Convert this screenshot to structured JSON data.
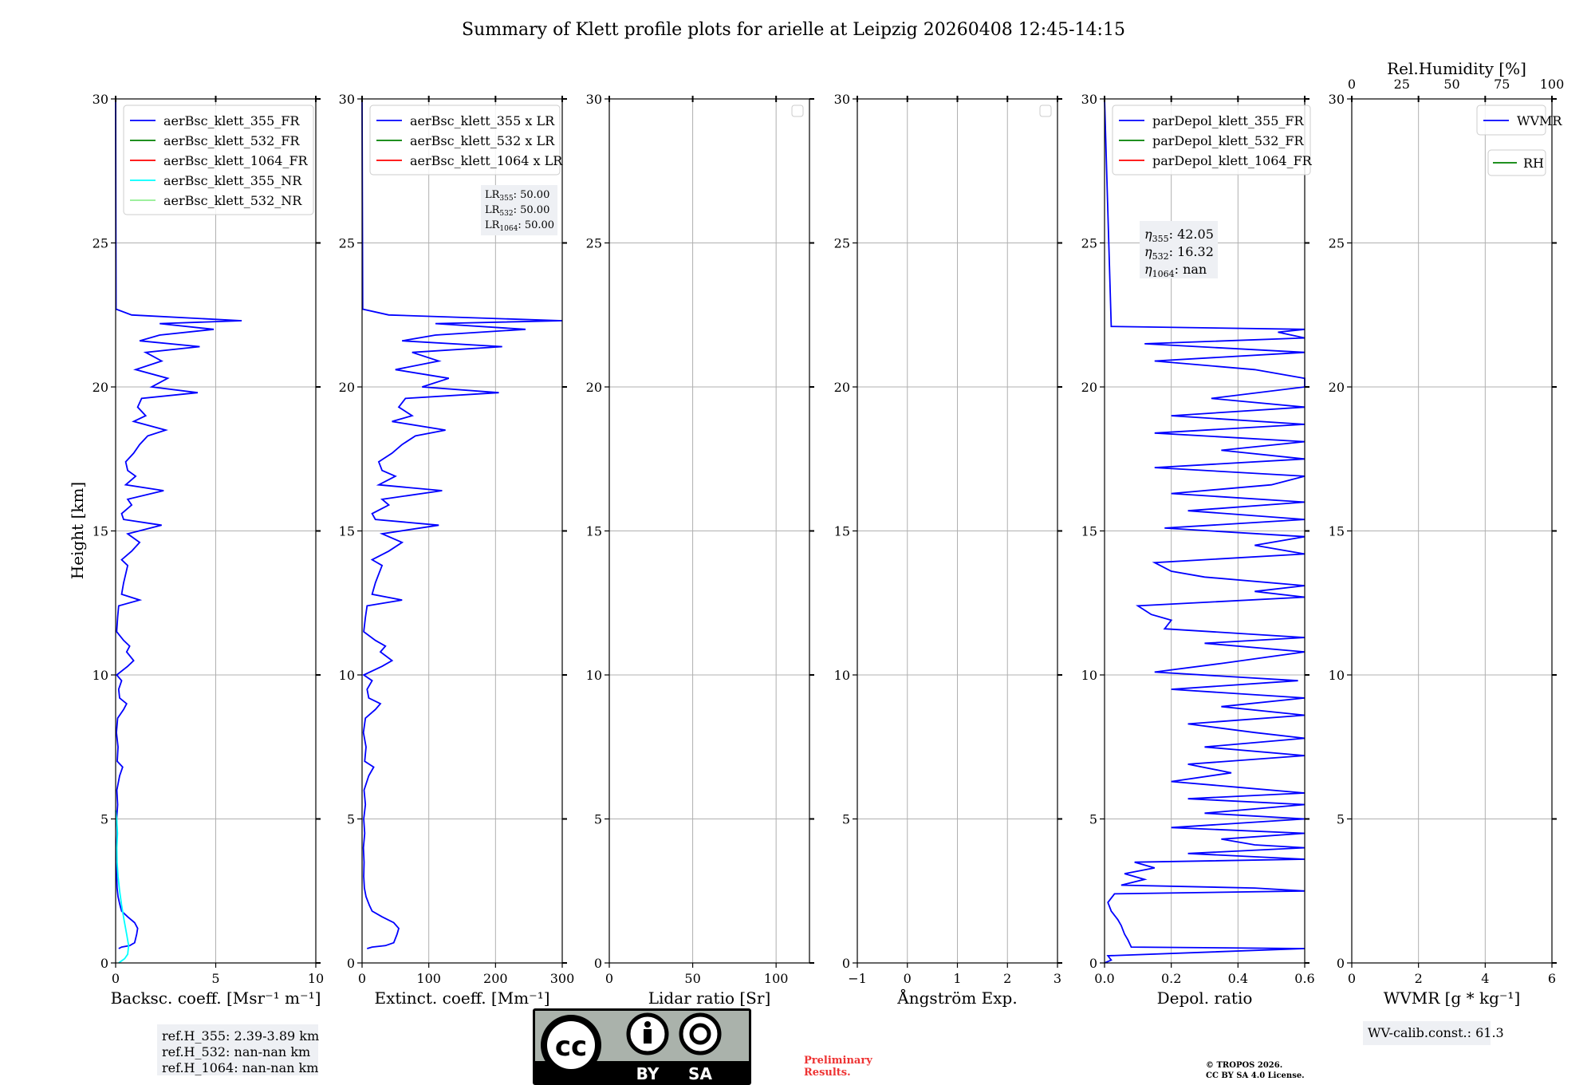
{
  "title": "Summary of Klett profile plots for arielle at Leipzig 20260408 12:45-14:15",
  "ylabel": "Height [km]",
  "ylim": [
    0,
    30
  ],
  "yticks": [
    0,
    5,
    10,
    15,
    20,
    25,
    30
  ],
  "colors": {
    "blue": "#0000ff",
    "green": "#008000",
    "red": "#ff0000",
    "cyan": "#00ffff",
    "lightgreen": "#90ee90",
    "grid": "#b0b0b0"
  },
  "chart_data": [
    {
      "type": "line",
      "id": "bsc",
      "xlabel": "Backsc. coeff. [Msr⁻¹ m⁻¹]",
      "xlim": [
        0,
        10
      ],
      "xticks": [
        0,
        5,
        10
      ],
      "legend": [
        {
          "name": "aerBsc_klett_355_FR",
          "color": "#0000ff"
        },
        {
          "name": "aerBsc_klett_532_FR",
          "color": "#008000"
        },
        {
          "name": "aerBsc_klett_1064_FR",
          "color": "#ff0000"
        },
        {
          "name": "aerBsc_klett_355_NR",
          "color": "#00ffff"
        },
        {
          "name": "aerBsc_klett_532_NR",
          "color": "#90ee90"
        }
      ],
      "series": [
        {
          "name": "aerBsc_klett_355_FR",
          "color": "#0000ff",
          "profile": "bsc",
          "scale": 1
        },
        {
          "name": "aerBsc_klett_355_NR",
          "color": "#00ffff",
          "profile": "nr",
          "scale": 1
        }
      ],
      "annotation": [
        "ref.H_355: 2.39-3.89 km",
        "ref.H_532: nan-nan km",
        "ref.H_1064: nan-nan km"
      ]
    },
    {
      "type": "line",
      "id": "ext",
      "xlabel": "Extinct. coeff. [Mm⁻¹]",
      "xlim": [
        0,
        300
      ],
      "xticks": [
        0,
        100,
        200,
        300
      ],
      "legend": [
        {
          "name": "aerBsc_klett_355 x LR",
          "color": "#0000ff"
        },
        {
          "name": "aerBsc_klett_532 x LR",
          "color": "#008000"
        },
        {
          "name": "aerBsc_klett_1064 x LR",
          "color": "#ff0000"
        }
      ],
      "series": [
        {
          "name": "aerBsc_klett_355 x LR",
          "color": "#0000ff",
          "profile": "bsc",
          "scale": 50
        }
      ],
      "lr_box": [
        {
          "sym": "LR",
          "sub": "355",
          "val": ": 50.00"
        },
        {
          "sym": "LR",
          "sub": "532",
          "val": ": 50.00"
        },
        {
          "sym": "LR",
          "sub": "1064",
          "val": ": 50.00"
        }
      ]
    },
    {
      "type": "line",
      "id": "lr",
      "xlabel": "Lidar ratio [Sr]",
      "xlim": [
        0,
        120
      ],
      "xticks": [
        0,
        50,
        100
      ],
      "legend": [],
      "empty_legend": true,
      "series": []
    },
    {
      "type": "line",
      "id": "ang",
      "xlabel": "Ångström Exp.",
      "xlim": [
        -1,
        3
      ],
      "xticks": [
        -1,
        0,
        1,
        2,
        3
      ],
      "legend": [],
      "empty_legend": true,
      "series": []
    },
    {
      "type": "line",
      "id": "dep",
      "xlabel": "Depol. ratio",
      "xlim": [
        0,
        0.6
      ],
      "xticks": [
        0.0,
        0.2,
        0.4,
        0.6
      ],
      "ticklabels": [
        "0.0",
        "0.2",
        "0.4",
        "0.6"
      ],
      "legend": [
        {
          "name": "parDepol_klett_355_FR",
          "color": "#0000ff"
        },
        {
          "name": "parDepol_klett_532_FR",
          "color": "#008000"
        },
        {
          "name": "parDepol_klett_1064_FR",
          "color": "#ff0000"
        }
      ],
      "series": [
        {
          "name": "parDepol_klett_355_FR",
          "color": "#0000ff",
          "profile": "dep",
          "scale": 1
        }
      ],
      "eta_box": [
        {
          "sym": "η",
          "sub": "355",
          "val": ": 42.05"
        },
        {
          "sym": "η",
          "sub": "532",
          "val": ": 16.32"
        },
        {
          "sym": "η",
          "sub": "1064",
          "val": ": nan"
        }
      ]
    },
    {
      "type": "line",
      "id": "wv",
      "xlabel": "WVMR [g * kg⁻¹]",
      "xlim": [
        0,
        6
      ],
      "xticks": [
        0,
        2,
        4,
        6
      ],
      "top_xlabel": "Rel.Humidity [%]",
      "top_xlim": [
        0,
        100
      ],
      "top_xticks": [
        0,
        25,
        50,
        75,
        100
      ],
      "legend": [
        {
          "name": "WVMR",
          "color": "#0000ff"
        }
      ],
      "legend2": [
        {
          "name": "RH",
          "color": "#008000"
        }
      ],
      "series": [],
      "annotation": [
        "WV-calib.const.: 61.3"
      ]
    }
  ],
  "profiles": {
    "bsc": [
      [
        0.5,
        0.15
      ],
      [
        0.55,
        0.3
      ],
      [
        0.6,
        0.7
      ],
      [
        0.7,
        0.95
      ],
      [
        1.0,
        1.05
      ],
      [
        1.2,
        1.1
      ],
      [
        1.4,
        0.95
      ],
      [
        1.6,
        0.6
      ],
      [
        1.8,
        0.3
      ],
      [
        2.0,
        0.22
      ],
      [
        2.3,
        0.12
      ],
      [
        2.6,
        0.07
      ],
      [
        3.0,
        0.05
      ],
      [
        3.5,
        0.06
      ],
      [
        4.0,
        0.04
      ],
      [
        4.5,
        0.08
      ],
      [
        5.0,
        0.05
      ],
      [
        5.5,
        0.1
      ],
      [
        6.0,
        0.06
      ],
      [
        6.5,
        0.2
      ],
      [
        6.8,
        0.35
      ],
      [
        7.0,
        0.08
      ],
      [
        7.5,
        0.12
      ],
      [
        8.0,
        0.04
      ],
      [
        8.5,
        0.1
      ],
      [
        8.8,
        0.4
      ],
      [
        9.0,
        0.55
      ],
      [
        9.2,
        0.2
      ],
      [
        9.5,
        0.15
      ],
      [
        9.8,
        0.3
      ],
      [
        10.0,
        0.05
      ],
      [
        10.3,
        0.6
      ],
      [
        10.5,
        0.9
      ],
      [
        10.8,
        0.55
      ],
      [
        11.0,
        0.7
      ],
      [
        11.2,
        0.4
      ],
      [
        11.5,
        0.05
      ],
      [
        12.0,
        0.1
      ],
      [
        12.4,
        0.15
      ],
      [
        12.6,
        1.2
      ],
      [
        12.8,
        0.3
      ],
      [
        13.2,
        0.4
      ],
      [
        13.5,
        0.5
      ],
      [
        13.8,
        0.6
      ],
      [
        14.0,
        0.3
      ],
      [
        14.3,
        0.8
      ],
      [
        14.6,
        1.2
      ],
      [
        14.9,
        0.6
      ],
      [
        15.2,
        2.3
      ],
      [
        15.4,
        0.4
      ],
      [
        15.6,
        0.3
      ],
      [
        15.9,
        0.8
      ],
      [
        16.1,
        0.6
      ],
      [
        16.4,
        2.4
      ],
      [
        16.6,
        0.5
      ],
      [
        16.9,
        1.0
      ],
      [
        17.1,
        0.6
      ],
      [
        17.4,
        0.5
      ],
      [
        17.7,
        0.9
      ],
      [
        18.0,
        1.2
      ],
      [
        18.3,
        1.6
      ],
      [
        18.5,
        2.5
      ],
      [
        18.8,
        0.9
      ],
      [
        19.0,
        1.5
      ],
      [
        19.3,
        1.1
      ],
      [
        19.6,
        1.3
      ],
      [
        19.8,
        4.1
      ],
      [
        20.0,
        1.8
      ],
      [
        20.3,
        2.6
      ],
      [
        20.6,
        1.0
      ],
      [
        20.9,
        2.3
      ],
      [
        21.2,
        1.5
      ],
      [
        21.4,
        4.2
      ],
      [
        21.6,
        1.2
      ],
      [
        21.8,
        2.2
      ],
      [
        22.0,
        4.9
      ],
      [
        22.2,
        2.2
      ],
      [
        22.3,
        6.3
      ],
      [
        22.5,
        0.8
      ],
      [
        22.7,
        0.02
      ],
      [
        30.0,
        0.0
      ]
    ],
    "nr": [
      [
        0.0,
        0.15
      ],
      [
        0.15,
        0.45
      ],
      [
        0.3,
        0.6
      ],
      [
        0.6,
        0.65
      ],
      [
        1.0,
        0.55
      ],
      [
        1.5,
        0.42
      ],
      [
        2.0,
        0.3
      ],
      [
        2.5,
        0.2
      ],
      [
        3.0,
        0.12
      ],
      [
        3.5,
        0.07
      ],
      [
        4.0,
        0.06
      ],
      [
        4.5,
        0.09
      ],
      [
        5.0,
        0.05
      ],
      [
        5.3,
        0.0
      ]
    ],
    "dep": [
      [
        0.0,
        0.0
      ],
      [
        0.1,
        0.02
      ],
      [
        0.25,
        0.01
      ],
      [
        0.5,
        0.6
      ],
      [
        0.55,
        0.08
      ],
      [
        0.8,
        0.07
      ],
      [
        1.0,
        0.06
      ],
      [
        1.3,
        0.05
      ],
      [
        1.5,
        0.04
      ],
      [
        1.8,
        0.02
      ],
      [
        2.1,
        0.01
      ],
      [
        2.4,
        0.03
      ],
      [
        2.5,
        0.6
      ],
      [
        2.6,
        0.45
      ],
      [
        2.7,
        0.05
      ],
      [
        2.9,
        0.12
      ],
      [
        3.1,
        0.06
      ],
      [
        3.3,
        0.15
      ],
      [
        3.5,
        0.09
      ],
      [
        3.6,
        0.6
      ],
      [
        3.8,
        0.25
      ],
      [
        4.0,
        0.6
      ],
      [
        4.1,
        0.45
      ],
      [
        4.3,
        0.35
      ],
      [
        4.5,
        0.6
      ],
      [
        4.7,
        0.2
      ],
      [
        5.0,
        0.6
      ],
      [
        5.2,
        0.3
      ],
      [
        5.5,
        0.6
      ],
      [
        5.7,
        0.25
      ],
      [
        5.9,
        0.6
      ],
      [
        6.1,
        0.4
      ],
      [
        6.3,
        0.2
      ],
      [
        6.6,
        0.38
      ],
      [
        6.9,
        0.25
      ],
      [
        7.2,
        0.6
      ],
      [
        7.5,
        0.3
      ],
      [
        7.8,
        0.6
      ],
      [
        8.0,
        0.45
      ],
      [
        8.3,
        0.25
      ],
      [
        8.6,
        0.6
      ],
      [
        8.9,
        0.35
      ],
      [
        9.2,
        0.6
      ],
      [
        9.5,
        0.2
      ],
      [
        9.8,
        0.58
      ],
      [
        10.1,
        0.15
      ],
      [
        10.4,
        0.35
      ],
      [
        10.8,
        0.6
      ],
      [
        11.1,
        0.3
      ],
      [
        11.3,
        0.6
      ],
      [
        11.6,
        0.18
      ],
      [
        11.9,
        0.2
      ],
      [
        12.1,
        0.14
      ],
      [
        12.4,
        0.1
      ],
      [
        12.7,
        0.6
      ],
      [
        12.9,
        0.45
      ],
      [
        13.1,
        0.6
      ],
      [
        13.4,
        0.3
      ],
      [
        13.6,
        0.2
      ],
      [
        13.9,
        0.15
      ],
      [
        14.2,
        0.6
      ],
      [
        14.5,
        0.45
      ],
      [
        14.8,
        0.6
      ],
      [
        15.1,
        0.18
      ],
      [
        15.4,
        0.6
      ],
      [
        15.7,
        0.25
      ],
      [
        16.0,
        0.6
      ],
      [
        16.3,
        0.2
      ],
      [
        16.6,
        0.5
      ],
      [
        16.9,
        0.6
      ],
      [
        17.2,
        0.15
      ],
      [
        17.5,
        0.6
      ],
      [
        17.8,
        0.35
      ],
      [
        18.1,
        0.6
      ],
      [
        18.4,
        0.15
      ],
      [
        18.7,
        0.6
      ],
      [
        19.0,
        0.2
      ],
      [
        19.3,
        0.6
      ],
      [
        19.6,
        0.32
      ],
      [
        20.0,
        0.6
      ],
      [
        20.3,
        0.6
      ],
      [
        20.6,
        0.45
      ],
      [
        20.9,
        0.15
      ],
      [
        21.2,
        0.6
      ],
      [
        21.5,
        0.12
      ],
      [
        21.7,
        0.6
      ],
      [
        21.9,
        0.52
      ],
      [
        22.0,
        0.6
      ],
      [
        22.1,
        0.02
      ],
      [
        30.0,
        0.0
      ]
    ]
  },
  "license": {
    "by": "BY",
    "sa": "SA",
    "cc": "cc"
  },
  "preliminary": [
    "Preliminary",
    "Results."
  ],
  "copyright": [
    "© TROPOS 2026.",
    "CC BY SA 4.0 License."
  ]
}
